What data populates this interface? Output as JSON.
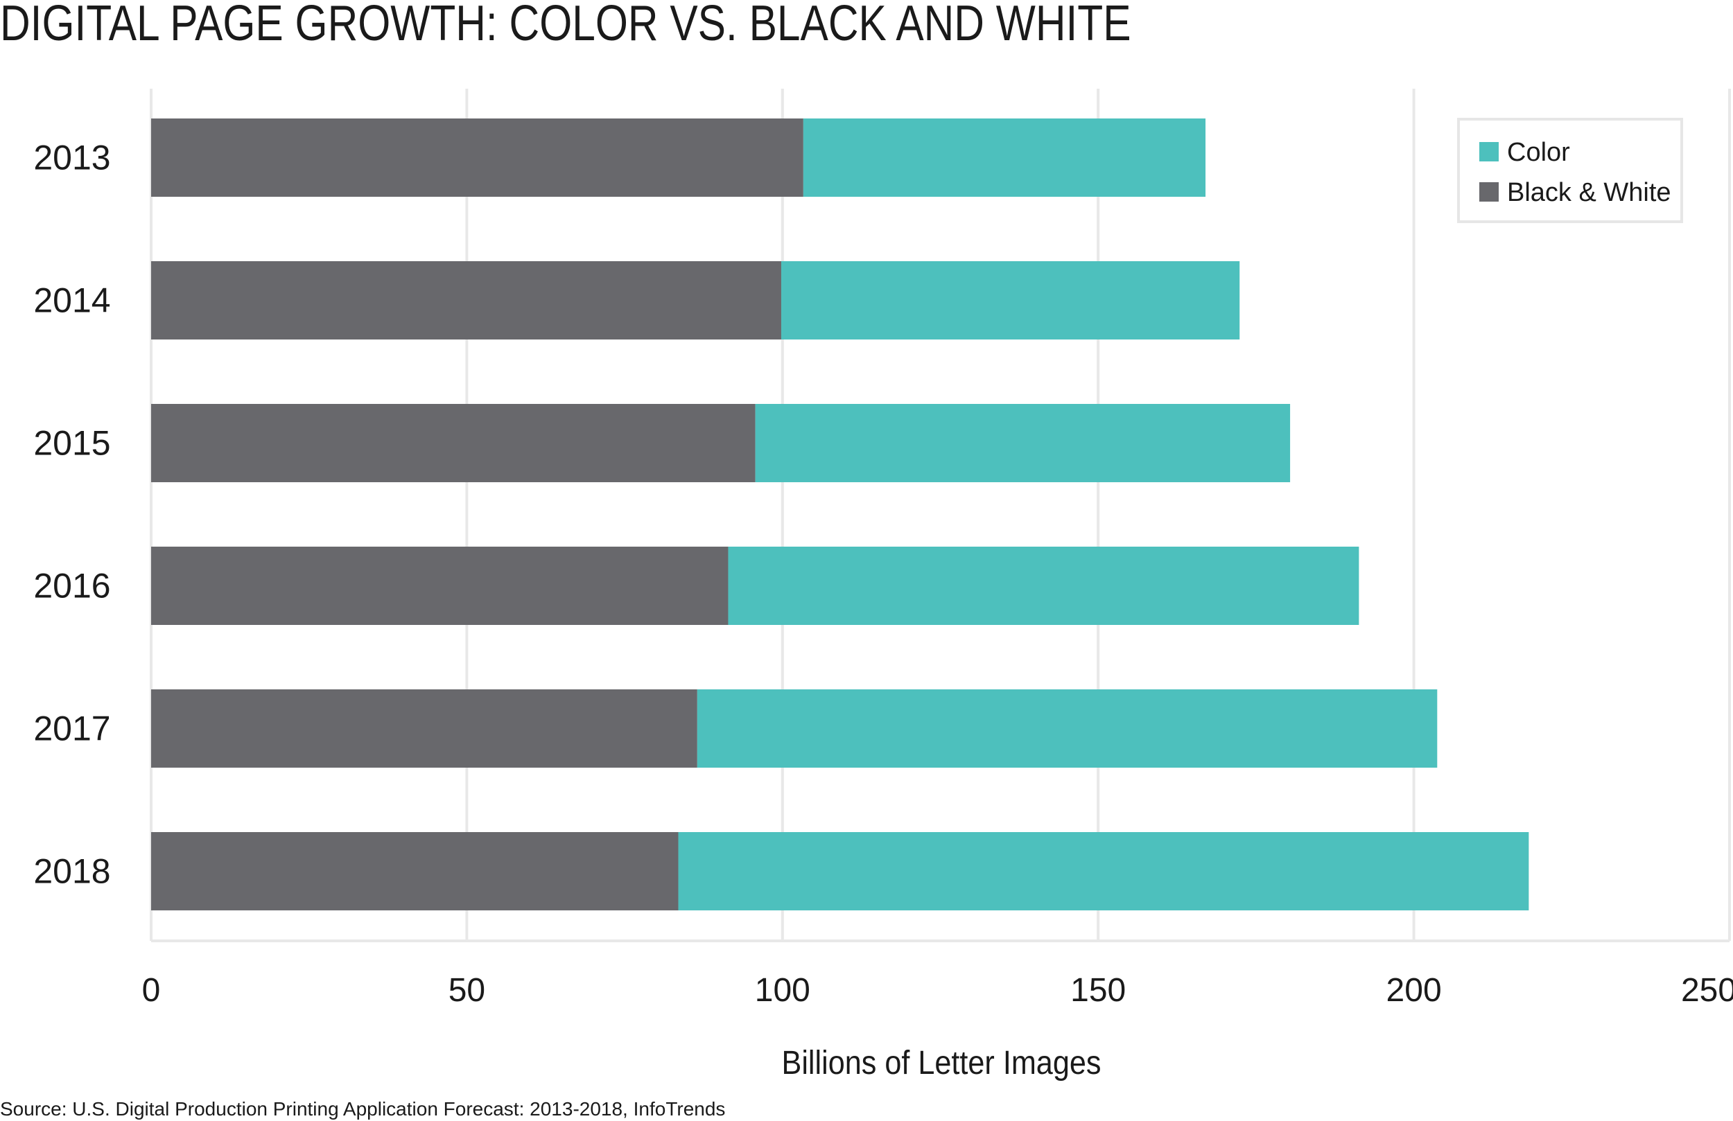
{
  "chart_data": {
    "type": "bar",
    "orientation": "horizontal",
    "stacked": true,
    "title": "DIGITAL PAGE GROWTH: COLOR VS. BLACK AND WHITE",
    "xlabel": "Billions of Letter Images",
    "ylabel": "",
    "categories": [
      "2013",
      "2014",
      "2015",
      "2016",
      "2017",
      "2018"
    ],
    "series": [
      {
        "name": "Black & White",
        "color": "#68686c",
        "values": [
          103.3,
          99.8,
          95.7,
          91.4,
          86.5,
          83.5
        ]
      },
      {
        "name": "Color",
        "color": "#4dc0bd",
        "values": [
          63.7,
          72.6,
          84.7,
          99.9,
          117.2,
          134.7
        ]
      }
    ],
    "legend_order": [
      "Color",
      "Black & White"
    ],
    "xlim": [
      0,
      250
    ],
    "xticks": [
      0,
      50,
      100,
      150,
      200,
      250
    ],
    "grid": true,
    "legend_position": "top-right",
    "source": "Source: U.S. Digital Production Printing Application Forecast: 2013-2018, InfoTrends"
  }
}
